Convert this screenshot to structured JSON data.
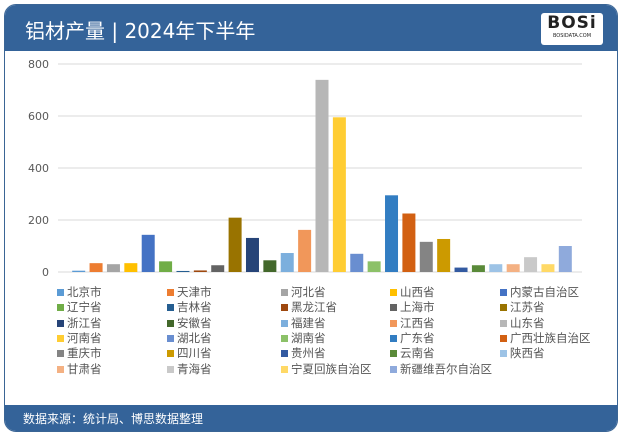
{
  "header": {
    "title": "铝材产量 | 2024年下半年",
    "logo_text": "BOSi",
    "logo_sub": "BOSIDATA.COM"
  },
  "footer": {
    "source": "数据来源：统计局、博思数据整理"
  },
  "chart_data": {
    "type": "bar",
    "title": "",
    "xlabel": "",
    "ylabel": "",
    "ylim": [
      0,
      800
    ],
    "yticks": [
      0,
      200,
      400,
      600,
      800
    ],
    "grid": true,
    "legend_position": "bottom",
    "series": [
      {
        "name": "北京市",
        "value": 5,
        "color": "#5b9bd5"
      },
      {
        "name": "天津市",
        "value": 34,
        "color": "#ed7d31"
      },
      {
        "name": "河北省",
        "value": 30,
        "color": "#a5a5a5"
      },
      {
        "name": "山西省",
        "value": 34,
        "color": "#ffc000"
      },
      {
        "name": "内蒙古自治区",
        "value": 143,
        "color": "#4472c4"
      },
      {
        "name": "辽宁省",
        "value": 41,
        "color": "#70ad47"
      },
      {
        "name": "吉林省",
        "value": 4,
        "color": "#255e91"
      },
      {
        "name": "黑龙江省",
        "value": 6,
        "color": "#9e480e"
      },
      {
        "name": "上海市",
        "value": 26,
        "color": "#636363"
      },
      {
        "name": "江苏省",
        "value": 209,
        "color": "#997300"
      },
      {
        "name": "浙江省",
        "value": 131,
        "color": "#264478"
      },
      {
        "name": "安徽省",
        "value": 45,
        "color": "#43682b"
      },
      {
        "name": "福建省",
        "value": 73,
        "color": "#7cafdd"
      },
      {
        "name": "江西省",
        "value": 162,
        "color": "#f1975a"
      },
      {
        "name": "山东省",
        "value": 739,
        "color": "#b7b7b7"
      },
      {
        "name": "河南省",
        "value": 595,
        "color": "#ffcd33"
      },
      {
        "name": "湖北省",
        "value": 70,
        "color": "#698ed0"
      },
      {
        "name": "湖南省",
        "value": 41,
        "color": "#8cc168"
      },
      {
        "name": "广东省",
        "value": 295,
        "color": "#327dc2"
      },
      {
        "name": "广西壮族自治区",
        "value": 225,
        "color": "#d26012"
      },
      {
        "name": "重庆市",
        "value": 116,
        "color": "#848484"
      },
      {
        "name": "四川省",
        "value": 127,
        "color": "#cc9a00"
      },
      {
        "name": "贵州省",
        "value": 17,
        "color": "#335aa1"
      },
      {
        "name": "云南省",
        "value": 26,
        "color": "#5a8a39"
      },
      {
        "name": "陕西省",
        "value": 30,
        "color": "#9dc3e6"
      },
      {
        "name": "甘肃省",
        "value": 30,
        "color": "#f4b183"
      },
      {
        "name": "青海省",
        "value": 57,
        "color": "#c9c9c9"
      },
      {
        "name": "宁夏回族自治区",
        "value": 30,
        "color": "#ffd966"
      },
      {
        "name": "新疆维吾尔自治区",
        "value": 100,
        "color": "#8faadc"
      }
    ]
  }
}
